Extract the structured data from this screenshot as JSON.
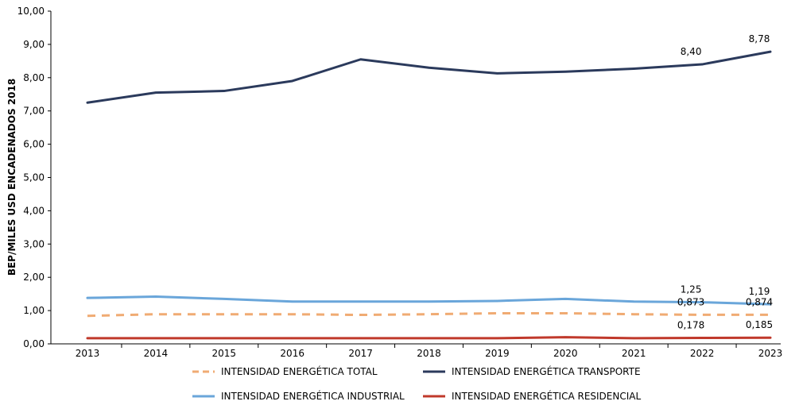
{
  "chart_data": {
    "type": "line",
    "ylabel": "BEP/MILES USD ENCADENADOS 2018",
    "categories": [
      "2013",
      "2014",
      "2015",
      "2016",
      "2017",
      "2018",
      "2019",
      "2020",
      "2021",
      "2022",
      "2023"
    ],
    "ylim": [
      0,
      10
    ],
    "yticks": [
      "0,00",
      "1,00",
      "2,00",
      "3,00",
      "4,00",
      "5,00",
      "6,00",
      "7,00",
      "8,00",
      "9,00",
      "10,00"
    ],
    "grid": false,
    "legend": "bottom",
    "series": [
      {
        "name": "INTENSIDAD ENERGÉTICA TRANSPORTE",
        "color": "#2b3a5c",
        "dash": false,
        "values": [
          7.25,
          7.55,
          7.6,
          7.9,
          8.55,
          8.3,
          8.13,
          8.18,
          8.27,
          8.4,
          8.78
        ]
      },
      {
        "name": "INTENSIDAD ENERGÉTICA INDUSTRIAL",
        "color": "#6aa6da",
        "dash": false,
        "values": [
          1.38,
          1.42,
          1.35,
          1.27,
          1.27,
          1.27,
          1.29,
          1.35,
          1.27,
          1.25,
          1.19
        ]
      },
      {
        "name": "INTENSIDAD ENERGÉTICA TOTAL",
        "color": "#f0ab73",
        "dash": true,
        "values": [
          0.84,
          0.89,
          0.89,
          0.89,
          0.87,
          0.89,
          0.92,
          0.92,
          0.89,
          0.873,
          0.874
        ]
      },
      {
        "name": "INTENSIDAD ENERGÉTICA RESIDENCIAL",
        "color": "#c0392b",
        "dash": false,
        "values": [
          0.17,
          0.17,
          0.17,
          0.17,
          0.17,
          0.17,
          0.17,
          0.2,
          0.17,
          0.178,
          0.185
        ]
      }
    ],
    "annotations": [
      {
        "series": 0,
        "index": 9,
        "text": "8,40"
      },
      {
        "series": 0,
        "index": 10,
        "text": "8,78"
      },
      {
        "series": 1,
        "index": 9,
        "text": "1,25"
      },
      {
        "series": 1,
        "index": 10,
        "text": "1,19"
      },
      {
        "series": 2,
        "index": 9,
        "text": "0,873"
      },
      {
        "series": 2,
        "index": 10,
        "text": "0,874"
      },
      {
        "series": 3,
        "index": 9,
        "text": "0,178"
      },
      {
        "series": 3,
        "index": 10,
        "text": "0,185"
      }
    ],
    "legend_entries": [
      {
        "series": 2,
        "label": "INTENSIDAD ENERGÉTICA TOTAL"
      },
      {
        "series": 0,
        "label": "INTENSIDAD ENERGÉTICA TRANSPORTE"
      },
      {
        "series": 1,
        "label": "INTENSIDAD ENERGÉTICA INDUSTRIAL"
      },
      {
        "series": 3,
        "label": "INTENSIDAD ENERGÉTICA RESIDENCIAL"
      }
    ]
  }
}
